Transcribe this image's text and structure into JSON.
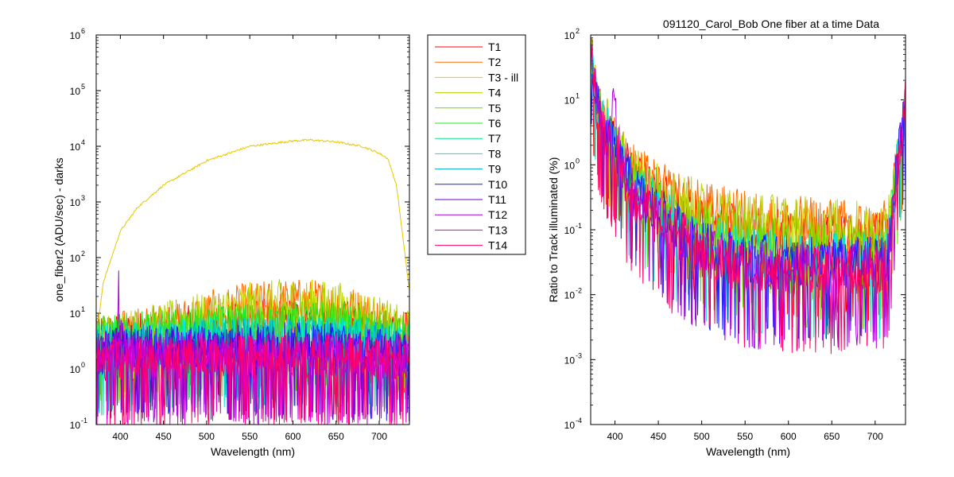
{
  "figure_title": "091120_Carol_Bob  One fiber at a time Data",
  "chart_data": [
    {
      "type": "line",
      "xlabel": "Wavelength (nm)",
      "ylabel": "one_fiber2  (ADU/sec) - darks",
      "y_scale": "log",
      "xlim": [
        372,
        735
      ],
      "ylim": [
        0.1,
        1000000
      ],
      "x_ticks": [
        400,
        450,
        500,
        550,
        600,
        650,
        700
      ],
      "y_ticks": [
        0.1,
        1,
        10,
        100,
        1000,
        10000,
        100000,
        1000000
      ],
      "y_tick_labels": [
        {
          "base": "10",
          "exp": "-1"
        },
        {
          "base": "10",
          "exp": "0"
        },
        {
          "base": "10",
          "exp": "1"
        },
        {
          "base": "10",
          "exp": "2"
        },
        {
          "base": "10",
          "exp": "3"
        },
        {
          "base": "10",
          "exp": "4"
        },
        {
          "base": "10",
          "exp": "5"
        },
        {
          "base": "10",
          "exp": "6"
        }
      ],
      "legend_location": "outside-right",
      "series": [
        {
          "name": "T1",
          "color": "#ff0000",
          "x": [
            375,
            400,
            450,
            500,
            550,
            600,
            650,
            700,
            735
          ],
          "y": [
            4.5,
            4.5,
            5.5,
            6.5,
            8,
            9,
            8,
            6,
            5
          ]
        },
        {
          "name": "T2",
          "color": "#ff6a00",
          "x": [
            375,
            400,
            450,
            500,
            550,
            600,
            650,
            700,
            735
          ],
          "y": [
            4.5,
            5,
            7,
            11,
            16,
            19,
            17,
            9,
            5
          ]
        },
        {
          "name": "T3 - ill",
          "color": "#e6c800",
          "x": [
            375,
            380,
            400,
            420,
            450,
            500,
            550,
            600,
            620,
            650,
            680,
            700,
            710,
            720,
            735
          ],
          "y": [
            8,
            35,
            300,
            800,
            2000,
            5500,
            10000,
            12500,
            13000,
            12000,
            10000,
            7500,
            6000,
            2000,
            25
          ]
        },
        {
          "name": "T4",
          "color": "#b8d400",
          "x": [
            375,
            400,
            450,
            500,
            550,
            600,
            650,
            700,
            735
          ],
          "y": [
            4.5,
            5,
            7,
            11,
            16,
            19,
            17,
            9,
            5
          ]
        },
        {
          "name": "T5",
          "color": "#66e000",
          "x": [
            375,
            400,
            450,
            500,
            550,
            600,
            650,
            700,
            735
          ],
          "y": [
            4,
            4.5,
            5,
            6,
            7,
            7.5,
            7,
            5,
            4
          ]
        },
        {
          "name": "T6",
          "color": "#22e622",
          "x": [
            375,
            400,
            450,
            500,
            550,
            600,
            650,
            700,
            735
          ],
          "y": [
            4,
            4.5,
            5,
            6,
            7,
            7.5,
            7,
            5,
            4
          ]
        },
        {
          "name": "T7",
          "color": "#00e68a",
          "x": [
            375,
            400,
            450,
            500,
            550,
            600,
            650,
            700,
            735
          ],
          "y": [
            3,
            3,
            3.5,
            4,
            4,
            4,
            4,
            3.5,
            3
          ]
        },
        {
          "name": "T8",
          "color": "#00e6d6",
          "x": [
            375,
            400,
            450,
            500,
            550,
            600,
            650,
            700,
            735
          ],
          "y": [
            3,
            3,
            3.5,
            4,
            4,
            4,
            4,
            3.5,
            3
          ]
        },
        {
          "name": "T9",
          "color": "#00aacc",
          "x": [
            375,
            400,
            450,
            500,
            550,
            600,
            650,
            700,
            735
          ],
          "y": [
            2.5,
            2.5,
            3,
            3.5,
            3.5,
            3.5,
            3.5,
            3,
            2.5
          ]
        },
        {
          "name": "T10",
          "color": "#1a1aff",
          "x": [
            375,
            400,
            450,
            500,
            550,
            600,
            650,
            700,
            735
          ],
          "y": [
            2,
            2.5,
            2.5,
            3,
            3,
            3,
            3,
            2.5,
            2
          ]
        },
        {
          "name": "T11",
          "color": "#6a00cc",
          "x": [
            375,
            400,
            450,
            500,
            550,
            600,
            650,
            700,
            735
          ],
          "y": [
            2,
            3,
            2.5,
            2.5,
            2.5,
            2.5,
            2.5,
            2,
            2
          ]
        },
        {
          "name": "T12",
          "color": "#aa00dd",
          "x": [
            375,
            395,
            398,
            401,
            410,
            450,
            500,
            550,
            600,
            650,
            700,
            735
          ],
          "y": [
            2,
            3,
            40,
            3,
            2,
            2,
            2,
            2,
            2,
            2,
            2,
            2
          ]
        },
        {
          "name": "T13",
          "color": "#dd00cc",
          "x": [
            375,
            400,
            450,
            500,
            550,
            600,
            650,
            700,
            735
          ],
          "y": [
            1.5,
            1.8,
            1.8,
            2,
            2,
            2,
            2,
            1.8,
            1.5
          ]
        },
        {
          "name": "T14",
          "color": "#ff0066",
          "x": [
            375,
            400,
            450,
            500,
            550,
            600,
            650,
            700,
            735
          ],
          "y": [
            1.5,
            1.5,
            1.6,
            1.8,
            1.8,
            1.8,
            1.8,
            1.6,
            1.5
          ]
        }
      ]
    },
    {
      "type": "line",
      "title": "091120_Carol_Bob  One fiber at a time Data",
      "xlabel": "Wavelength (nm)",
      "ylabel": "Ratio to Track illuminated (%)",
      "y_scale": "log",
      "xlim": [
        372,
        735
      ],
      "ylim": [
        0.0001,
        100
      ],
      "x_ticks": [
        400,
        450,
        500,
        550,
        600,
        650,
        700
      ],
      "y_ticks": [
        0.0001,
        0.001,
        0.01,
        0.1,
        1,
        10,
        100
      ],
      "y_tick_labels": [
        {
          "base": "10",
          "exp": "-4"
        },
        {
          "base": "10",
          "exp": "-3"
        },
        {
          "base": "10",
          "exp": "-2"
        },
        {
          "base": "10",
          "exp": "-1"
        },
        {
          "base": "10",
          "exp": "0"
        },
        {
          "base": "10",
          "exp": "1"
        },
        {
          "base": "10",
          "exp": "2"
        }
      ],
      "series": [
        {
          "name": "T1",
          "color": "#ff0000",
          "x": [
            373,
            380,
            400,
            420,
            450,
            500,
            550,
            600,
            650,
            700,
            715,
            725,
            735
          ],
          "y": [
            50,
            10,
            2.5,
            0.8,
            0.35,
            0.15,
            0.1,
            0.09,
            0.08,
            0.08,
            0.1,
            1,
            10
          ]
        },
        {
          "name": "T2",
          "color": "#ff6a00",
          "x": [
            373,
            380,
            400,
            420,
            450,
            500,
            550,
            600,
            650,
            700,
            715,
            725,
            735
          ],
          "y": [
            50,
            10,
            2.5,
            1,
            0.5,
            0.25,
            0.18,
            0.15,
            0.14,
            0.12,
            0.13,
            1,
            10
          ]
        },
        {
          "name": "T4",
          "color": "#b8d400",
          "x": [
            373,
            380,
            400,
            420,
            450,
            500,
            550,
            600,
            650,
            700,
            715,
            725,
            735
          ],
          "y": [
            50,
            10,
            2.5,
            1,
            0.5,
            0.25,
            0.18,
            0.15,
            0.14,
            0.12,
            0.13,
            1,
            10
          ]
        },
        {
          "name": "T5",
          "color": "#66e000",
          "x": [
            373,
            380,
            400,
            420,
            450,
            500,
            550,
            600,
            650,
            700,
            715,
            725,
            735
          ],
          "y": [
            50,
            10,
            2.5,
            0.7,
            0.3,
            0.12,
            0.08,
            0.06,
            0.06,
            0.06,
            0.07,
            1,
            10
          ]
        },
        {
          "name": "T8",
          "color": "#00e6d6",
          "x": [
            373,
            380,
            400,
            420,
            450,
            500,
            550,
            600,
            650,
            700,
            715,
            725,
            735
          ],
          "y": [
            50,
            8,
            2,
            0.6,
            0.25,
            0.08,
            0.05,
            0.04,
            0.04,
            0.04,
            0.05,
            1,
            10
          ]
        },
        {
          "name": "T10",
          "color": "#1a1aff",
          "x": [
            373,
            380,
            400,
            420,
            450,
            500,
            550,
            600,
            650,
            700,
            715,
            725,
            735
          ],
          "y": [
            50,
            8,
            1.8,
            0.5,
            0.2,
            0.06,
            0.04,
            0.035,
            0.035,
            0.035,
            0.04,
            1,
            10
          ]
        },
        {
          "name": "T12",
          "color": "#aa00dd",
          "x": [
            373,
            380,
            395,
            399,
            403,
            420,
            450,
            500,
            550,
            600,
            650,
            700,
            715,
            725,
            735
          ],
          "y": [
            50,
            8,
            2,
            20,
            2,
            0.4,
            0.15,
            0.05,
            0.03,
            0.03,
            0.03,
            0.03,
            0.04,
            1,
            10
          ]
        },
        {
          "name": "T14",
          "color": "#ff0066",
          "x": [
            373,
            380,
            400,
            420,
            450,
            500,
            550,
            600,
            650,
            700,
            715,
            725,
            735
          ],
          "y": [
            50,
            7,
            1.5,
            0.4,
            0.15,
            0.05,
            0.03,
            0.025,
            0.025,
            0.025,
            0.03,
            1,
            10
          ]
        }
      ]
    }
  ]
}
